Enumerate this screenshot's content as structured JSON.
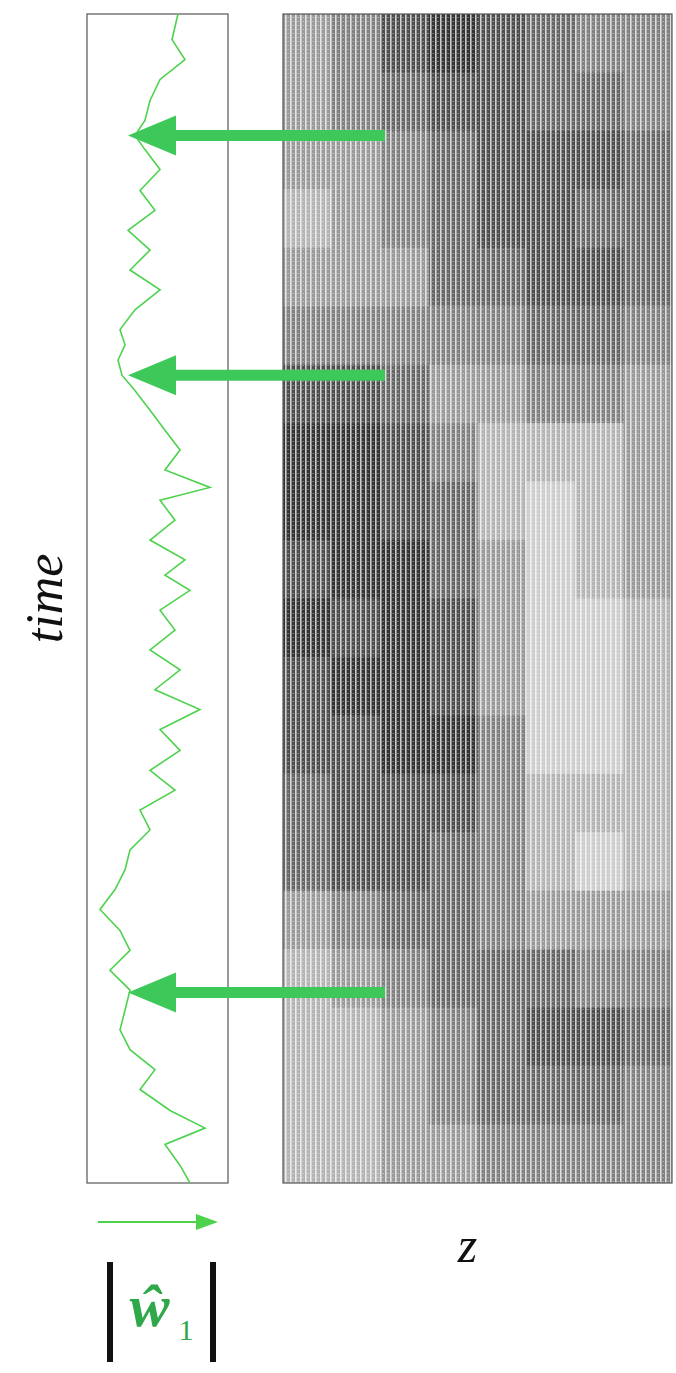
{
  "chart_data": [
    {
      "type": "line",
      "ylabel": "time",
      "xlabel": "ŵ",
      "xlabel_subscript": "1",
      "color": "#4dd24d",
      "tick_labels": false,
      "ylim": [
        0,
        1
      ],
      "xlim": [
        0,
        1
      ],
      "time": [
        0,
        0.015,
        0.033,
        0.047,
        0.062,
        0.08,
        0.097,
        0.114,
        0.131,
        0.148,
        0.165,
        0.182,
        0.199,
        0.216,
        0.234,
        0.251,
        0.268,
        0.285,
        0.302,
        0.319,
        0.336,
        0.353,
        0.37,
        0.388,
        0.405,
        0.422,
        0.439,
        0.456,
        0.473,
        0.49,
        0.507,
        0.52,
        0.533,
        0.55,
        0.567,
        0.584,
        0.595,
        0.61,
        0.627,
        0.644,
        0.661,
        0.678,
        0.691,
        0.704,
        0.717,
        0.73,
        0.747,
        0.764,
        0.781,
        0.798,
        0.815,
        0.832,
        0.849,
        0.867,
        0.884,
        0.896,
        0.909,
        0.926,
        0.944,
        0.961,
        0.978,
        1.0
      ],
      "values": [
        0.73,
        0.66,
        0.553,
        0.837,
        0.589,
        0.376,
        0.482,
        0.305,
        0.234,
        0.27,
        0.305,
        0.163,
        0.305,
        0.234,
        0.092,
        0.199,
        0.27,
        0.305,
        0.447,
        0.376,
        0.624,
        0.447,
        0.66,
        0.518,
        0.801,
        0.482,
        0.66,
        0.447,
        0.624,
        0.518,
        0.73,
        0.553,
        0.695,
        0.447,
        0.624,
        0.518,
        0.872,
        0.553,
        0.66,
        0.553,
        0.447,
        0.34,
        0.248,
        0.22,
        0.27,
        0.234,
        0.34,
        0.518,
        0.305,
        0.447,
        0.291,
        0.482,
        0.376,
        0.518,
        0.411,
        0.34,
        0.411,
        0.447,
        0.518,
        0.695,
        0.603,
        0.645
      ],
      "arrow_times": [
        0.896,
        0.691,
        0.163
      ]
    },
    {
      "type": "heatmap",
      "xlabel": "z",
      "tick_labels": false,
      "density_lim": [
        0,
        1
      ],
      "density": [
        [
          0.4,
          0.5,
          0.7,
          0.8,
          0.7,
          0.6,
          0.5,
          0.5
        ],
        [
          0.4,
          0.5,
          0.6,
          0.7,
          0.7,
          0.6,
          0.6,
          0.5
        ],
        [
          0.4,
          0.4,
          0.5,
          0.6,
          0.7,
          0.7,
          0.7,
          0.6
        ],
        [
          0.3,
          0.4,
          0.5,
          0.6,
          0.7,
          0.7,
          0.6,
          0.6
        ],
        [
          0.4,
          0.4,
          0.4,
          0.6,
          0.6,
          0.7,
          0.7,
          0.6
        ],
        [
          0.5,
          0.5,
          0.5,
          0.5,
          0.5,
          0.6,
          0.6,
          0.5
        ],
        [
          0.7,
          0.7,
          0.6,
          0.4,
          0.4,
          0.5,
          0.5,
          0.4
        ],
        [
          0.8,
          0.8,
          0.7,
          0.5,
          0.3,
          0.3,
          0.3,
          0.4
        ],
        [
          0.8,
          0.8,
          0.7,
          0.6,
          0.3,
          0.2,
          0.3,
          0.4
        ],
        [
          0.7,
          0.8,
          0.8,
          0.6,
          0.4,
          0.2,
          0.3,
          0.4
        ],
        [
          0.8,
          0.7,
          0.8,
          0.7,
          0.4,
          0.2,
          0.2,
          0.3
        ],
        [
          0.7,
          0.8,
          0.8,
          0.7,
          0.4,
          0.2,
          0.2,
          0.3
        ],
        [
          0.7,
          0.7,
          0.8,
          0.8,
          0.5,
          0.2,
          0.2,
          0.3
        ],
        [
          0.6,
          0.7,
          0.7,
          0.7,
          0.5,
          0.3,
          0.3,
          0.3
        ],
        [
          0.6,
          0.7,
          0.7,
          0.6,
          0.5,
          0.3,
          0.2,
          0.3
        ],
        [
          0.4,
          0.5,
          0.6,
          0.6,
          0.5,
          0.4,
          0.4,
          0.4
        ],
        [
          0.3,
          0.4,
          0.5,
          0.6,
          0.6,
          0.6,
          0.5,
          0.5
        ],
        [
          0.3,
          0.3,
          0.4,
          0.5,
          0.6,
          0.7,
          0.7,
          0.6
        ],
        [
          0.3,
          0.3,
          0.4,
          0.5,
          0.6,
          0.6,
          0.6,
          0.5
        ],
        [
          0.3,
          0.3,
          0.4,
          0.4,
          0.5,
          0.5,
          0.5,
          0.5
        ]
      ]
    }
  ]
}
